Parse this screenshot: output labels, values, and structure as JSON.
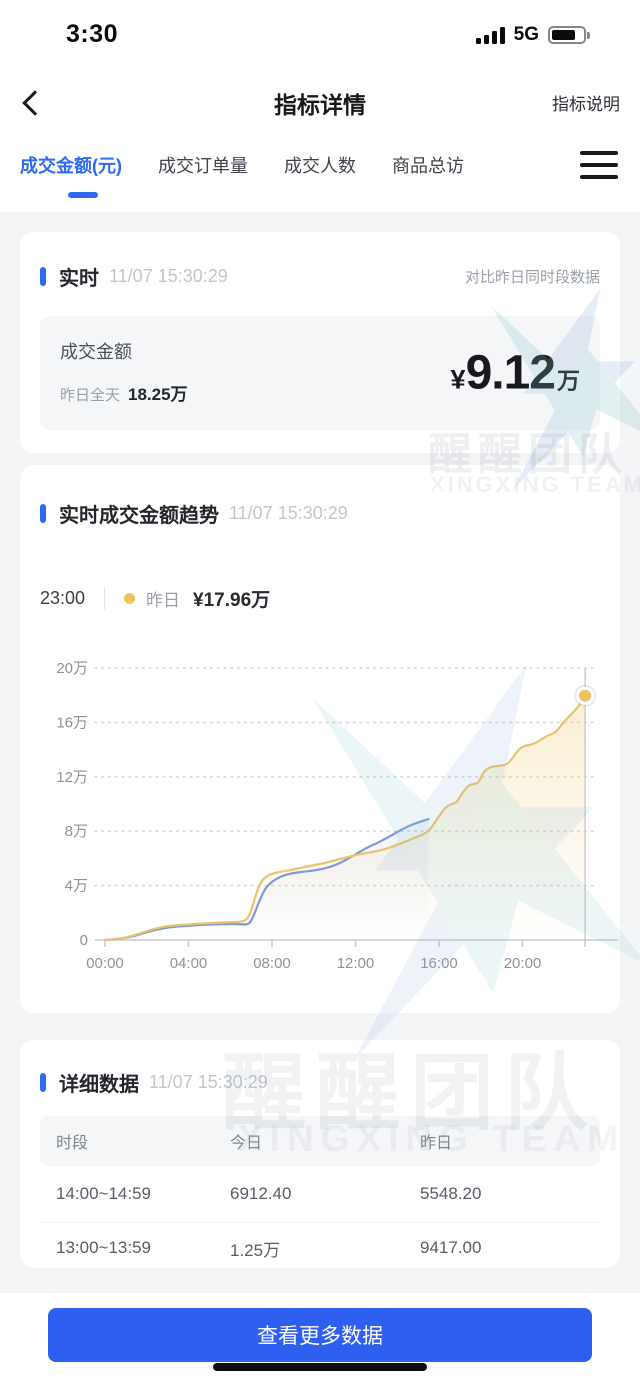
{
  "status_bar": {
    "time": "3:30",
    "network": "5G"
  },
  "header": {
    "title": "指标详情",
    "action": "指标说明"
  },
  "tabs": {
    "items": [
      {
        "label": "成交金额(元)",
        "active": true
      },
      {
        "label": "成交订单量",
        "active": false
      },
      {
        "label": "成交人数",
        "active": false
      },
      {
        "label": "商品总访",
        "active": false
      }
    ]
  },
  "realtime_card": {
    "section_title": "实时",
    "timestamp": "11/07 15:30:29",
    "compare_note": "对比昨日同时段数据",
    "metric_label": "成交金额",
    "yesterday_label": "昨日全天",
    "yesterday_value": "18.25万",
    "currency": "¥",
    "value": "9.12",
    "unit": "万"
  },
  "trend_card": {
    "section_title": "实时成交金额趋势",
    "timestamp": "11/07 15:30:29",
    "tooltip": {
      "time": "23:00",
      "series": "昨日",
      "value": "¥17.96万"
    }
  },
  "chart_data": {
    "type": "line",
    "title": "实时成交金额趋势",
    "unit": "万",
    "ylim": [
      0,
      20
    ],
    "x_range_hours": [
      0,
      23.6
    ],
    "grid": "dotted-horizontal",
    "yticks": [
      {
        "label": "0",
        "value": 0
      },
      {
        "label": "4万",
        "value": 4
      },
      {
        "label": "8万",
        "value": 8
      },
      {
        "label": "12万",
        "value": 12
      },
      {
        "label": "16万",
        "value": 16
      },
      {
        "label": "20万",
        "value": 20
      }
    ],
    "xticks": [
      {
        "label": "00:00",
        "hour": 0
      },
      {
        "label": "04:00",
        "hour": 4
      },
      {
        "label": "08:00",
        "hour": 8
      },
      {
        "label": "12:00",
        "hour": 12
      },
      {
        "label": "16:00",
        "hour": 16
      },
      {
        "label": "20:00",
        "hour": 20
      }
    ],
    "series": [
      {
        "name": "今日",
        "color": "#7e99da",
        "area": true,
        "points": [
          [
            0,
            0
          ],
          [
            0.6,
            0.07
          ],
          [
            1,
            0.15
          ],
          [
            1.5,
            0.34
          ],
          [
            2,
            0.58
          ],
          [
            2.5,
            0.78
          ],
          [
            3,
            0.92
          ],
          [
            3.5,
            1.0
          ],
          [
            4,
            1.05
          ],
          [
            4.5,
            1.1
          ],
          [
            5,
            1.13
          ],
          [
            5.5,
            1.16
          ],
          [
            6,
            1.18
          ],
          [
            6.5,
            1.16
          ],
          [
            6.9,
            1.13
          ],
          [
            7.1,
            1.7
          ],
          [
            7.35,
            2.7
          ],
          [
            7.6,
            3.6
          ],
          [
            7.85,
            4.1
          ],
          [
            8.1,
            4.4
          ],
          [
            8.4,
            4.65
          ],
          [
            8.7,
            4.82
          ],
          [
            9,
            4.92
          ],
          [
            9.5,
            5.02
          ],
          [
            10,
            5.1
          ],
          [
            10.5,
            5.25
          ],
          [
            11,
            5.48
          ],
          [
            11.5,
            5.85
          ],
          [
            12,
            6.3
          ],
          [
            12.5,
            6.75
          ],
          [
            13,
            7.1
          ],
          [
            13.5,
            7.5
          ],
          [
            14,
            7.95
          ],
          [
            14.5,
            8.35
          ],
          [
            15,
            8.65
          ],
          [
            15.5,
            8.9
          ]
        ]
      },
      {
        "name": "昨日",
        "color": "#e9c46b",
        "area": true,
        "points": [
          [
            0,
            0
          ],
          [
            0.6,
            0.08
          ],
          [
            1,
            0.18
          ],
          [
            1.5,
            0.4
          ],
          [
            2,
            0.65
          ],
          [
            2.5,
            0.88
          ],
          [
            3,
            1.02
          ],
          [
            3.5,
            1.1
          ],
          [
            4,
            1.14
          ],
          [
            4.5,
            1.2
          ],
          [
            5,
            1.24
          ],
          [
            5.5,
            1.28
          ],
          [
            6,
            1.31
          ],
          [
            6.5,
            1.33
          ],
          [
            6.8,
            1.5
          ],
          [
            7,
            2.1
          ],
          [
            7.2,
            3.2
          ],
          [
            7.45,
            4.25
          ],
          [
            7.7,
            4.65
          ],
          [
            8,
            4.88
          ],
          [
            8.5,
            5.05
          ],
          [
            9,
            5.15
          ],
          [
            9.5,
            5.35
          ],
          [
            10,
            5.5
          ],
          [
            10.5,
            5.65
          ],
          [
            11,
            5.85
          ],
          [
            11.5,
            6.05
          ],
          [
            12,
            6.25
          ],
          [
            12.5,
            6.4
          ],
          [
            13,
            6.52
          ],
          [
            13.5,
            6.72
          ],
          [
            14,
            7.0
          ],
          [
            14.5,
            7.3
          ],
          [
            15,
            7.62
          ],
          [
            15.5,
            7.95
          ],
          [
            16,
            9.1
          ],
          [
            16.3,
            9.75
          ],
          [
            16.6,
            10.0
          ],
          [
            16.85,
            10.1
          ],
          [
            17.1,
            10.8
          ],
          [
            17.4,
            11.35
          ],
          [
            17.7,
            11.5
          ],
          [
            17.9,
            11.55
          ],
          [
            18.1,
            12.3
          ],
          [
            18.4,
            12.7
          ],
          [
            18.8,
            12.8
          ],
          [
            19.2,
            12.85
          ],
          [
            19.5,
            13.3
          ],
          [
            19.8,
            14.0
          ],
          [
            20.1,
            14.3
          ],
          [
            20.5,
            14.38
          ],
          [
            20.9,
            14.75
          ],
          [
            21.2,
            15.05
          ],
          [
            21.6,
            15.25
          ],
          [
            22,
            16.1
          ],
          [
            22.4,
            16.7
          ],
          [
            22.7,
            17.2
          ],
          [
            23,
            17.96
          ]
        ]
      }
    ],
    "marker": {
      "series": "昨日",
      "hour": 23,
      "value": 17.96,
      "label": "¥17.96万",
      "color": "#eec25e"
    },
    "cursor_line_hour": 23
  },
  "detail_card": {
    "section_title": "详细数据",
    "timestamp": "11/07 15:30:29",
    "table": {
      "headers": [
        "时段",
        "今日",
        "昨日"
      ],
      "rows": [
        [
          "14:00~14:59",
          "6912.40",
          "5548.20"
        ],
        [
          "13:00~13:59",
          "1.25万",
          "9417.00"
        ]
      ]
    }
  },
  "footer": {
    "button_label": "查看更多数据"
  },
  "watermark": {
    "cn": "醒醒团队",
    "en": "XINGXING TEAM"
  },
  "colors": {
    "accent_blue": "#2e6af2",
    "button_blue": "#2f5ff0",
    "today_line": "#7e99da",
    "yesterday_line": "#e9c46b",
    "marker_fill": "#eec25e",
    "page_bg": "#f4f5f7",
    "panel_bg": "#f4f6f8"
  }
}
